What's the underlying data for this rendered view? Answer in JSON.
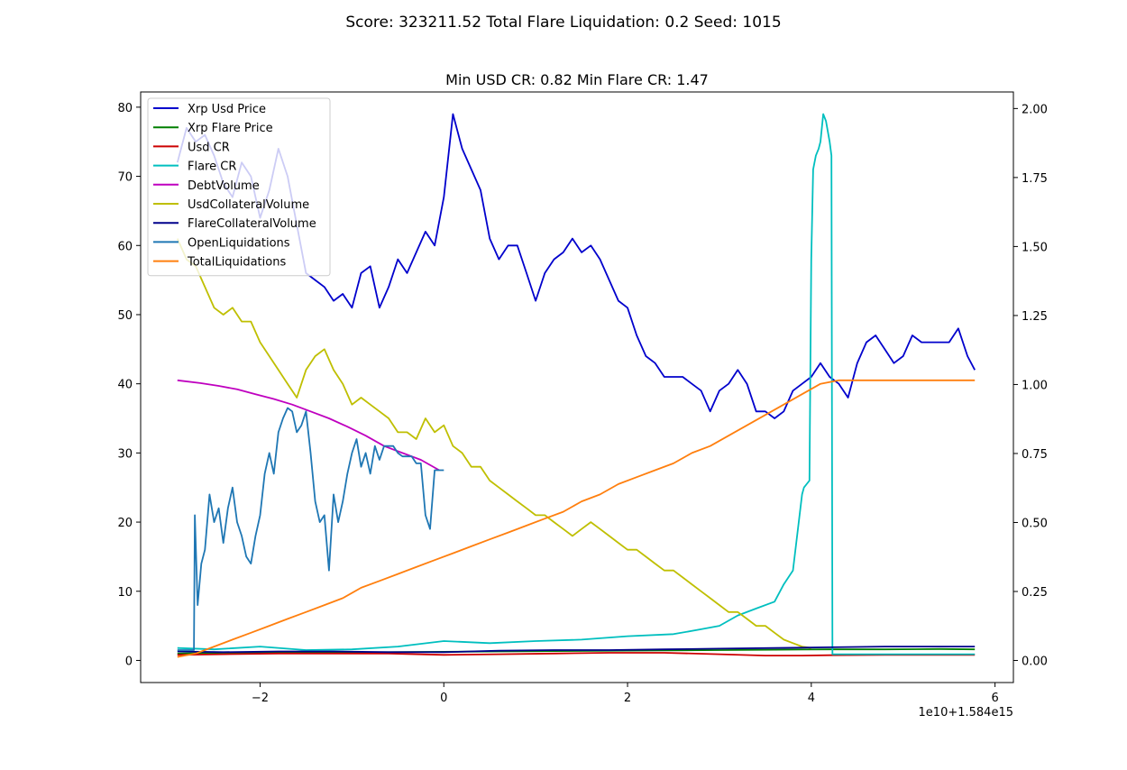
{
  "suptitle": "Score: 323211.52 Total Flare Liquidation: 0.2 Seed: 1015",
  "chart_data": {
    "type": "line",
    "title": "Min USD CR: 0.82 Min Flare CR: 1.47",
    "x_offset_label": "1e10+1.584e15",
    "xlim": [
      -3.3,
      6.2
    ],
    "ylim_left": [
      -3.2,
      82.2
    ],
    "ylim_right": [
      -0.08,
      2.06
    ],
    "x_ticks": [
      -2,
      0,
      2,
      4,
      6
    ],
    "x_tick_labels": [
      "−2",
      "0",
      "2",
      "4",
      "6"
    ],
    "y_left_ticks": [
      0,
      10,
      20,
      30,
      40,
      50,
      60,
      70,
      80
    ],
    "y_left_tick_labels": [
      "0",
      "10",
      "20",
      "30",
      "40",
      "50",
      "60",
      "70",
      "80"
    ],
    "y_right_ticks": [
      0,
      0.25,
      0.5,
      0.75,
      1.0,
      1.25,
      1.5,
      1.75,
      2.0
    ],
    "y_right_tick_labels": [
      "0.00",
      "0.25",
      "0.50",
      "0.75",
      "1.00",
      "1.25",
      "1.50",
      "1.75",
      "2.00"
    ],
    "legend_position": "upper-left",
    "series": [
      {
        "name": "Xrp Usd Price",
        "color": "#0000cc",
        "axis": "left",
        "x": [
          -2.9,
          -2.8,
          -2.7,
          -2.6,
          -2.5,
          -2.4,
          -2.3,
          -2.2,
          -2.1,
          -2.0,
          -1.9,
          -1.8,
          -1.7,
          -1.6,
          -1.5,
          -1.4,
          -1.3,
          -1.2,
          -1.1,
          -1.0,
          -0.9,
          -0.8,
          -0.7,
          -0.6,
          -0.5,
          -0.4,
          -0.3,
          -0.2,
          -0.1,
          0.0,
          0.1,
          0.2,
          0.3,
          0.4,
          0.5,
          0.6,
          0.7,
          0.8,
          0.9,
          1.0,
          1.1,
          1.2,
          1.3,
          1.4,
          1.5,
          1.6,
          1.7,
          1.8,
          1.9,
          2.0,
          2.1,
          2.2,
          2.3,
          2.4,
          2.5,
          2.6,
          2.7,
          2.8,
          2.9,
          3.0,
          3.1,
          3.2,
          3.3,
          3.4,
          3.5,
          3.6,
          3.7,
          3.8,
          3.9,
          4.0,
          4.1,
          4.2,
          4.3,
          4.4,
          4.5,
          4.6,
          4.7,
          4.8,
          4.9,
          5.0,
          5.1,
          5.2,
          5.3,
          5.4,
          5.5,
          5.6,
          5.7,
          5.78
        ],
        "y": [
          72,
          77,
          75,
          76,
          73,
          69,
          67,
          72,
          70,
          64,
          68,
          74,
          70,
          63,
          56,
          55,
          54,
          52,
          53,
          51,
          56,
          57,
          51,
          54,
          58,
          56,
          59,
          62,
          60,
          67,
          79,
          74,
          71,
          68,
          61,
          58,
          60,
          60,
          56,
          52,
          56,
          58,
          59,
          61,
          59,
          60,
          58,
          55,
          52,
          51,
          47,
          44,
          43,
          41,
          41,
          41,
          40,
          39,
          36,
          39,
          40,
          42,
          40,
          36,
          36,
          35,
          36,
          39,
          40,
          41,
          43,
          41,
          40,
          38,
          43,
          46,
          47,
          45,
          43,
          44,
          47,
          46,
          46,
          46,
          46,
          48,
          44,
          42
        ]
      },
      {
        "name": "Xrp Flare Price",
        "color": "#007f00",
        "axis": "left",
        "x": [
          -2.9,
          -2.4,
          -1.8,
          -1.2,
          -0.6,
          0.0,
          0.6,
          1.2,
          1.8,
          2.4,
          3.0,
          3.6,
          4.2,
          4.8,
          5.4,
          5.78
        ],
        "y": [
          1.0,
          1.1,
          1.2,
          1.15,
          1.2,
          1.25,
          1.3,
          1.35,
          1.4,
          1.45,
          1.5,
          1.55,
          1.6,
          1.6,
          1.65,
          1.6
        ]
      },
      {
        "name": "Usd CR",
        "color": "#cc0000",
        "axis": "left",
        "x": [
          -2.9,
          -2.4,
          -1.8,
          -1.2,
          -0.6,
          0.0,
          0.6,
          1.2,
          1.8,
          2.4,
          3.0,
          3.5,
          3.9,
          4.2,
          4.8,
          5.4,
          5.78
        ],
        "y": [
          0.8,
          0.9,
          1.0,
          1.0,
          1.0,
          0.8,
          0.9,
          1.0,
          1.1,
          1.1,
          0.9,
          0.7,
          0.7,
          0.75,
          0.8,
          0.8,
          0.8
        ]
      },
      {
        "name": "Flare CR",
        "color": "#00bfbf",
        "axis": "left",
        "x": [
          -2.9,
          -2.5,
          -2.0,
          -1.5,
          -1.0,
          -0.5,
          0.0,
          0.5,
          1.0,
          1.5,
          2.0,
          2.5,
          2.8,
          3.0,
          3.2,
          3.4,
          3.6,
          3.7,
          3.8,
          3.9,
          3.92,
          3.98,
          4.0,
          4.02,
          4.05,
          4.08,
          4.1,
          4.13,
          4.16,
          4.2,
          4.22,
          4.23,
          4.24,
          4.5,
          5.0,
          5.5,
          5.78
        ],
        "y": [
          1.8,
          1.6,
          2.0,
          1.5,
          1.6,
          2.0,
          2.8,
          2.5,
          2.8,
          3.0,
          3.5,
          3.8,
          4.5,
          5.0,
          6.5,
          7.5,
          8.5,
          11,
          13,
          24,
          25,
          26,
          58,
          71,
          73,
          74,
          75,
          79,
          78,
          75,
          73,
          0.9,
          0.9,
          0.9,
          0.9,
          0.9,
          0.9
        ]
      },
      {
        "name": "DebtVolume",
        "color": "#bf00bf",
        "axis": "left",
        "x": [
          -2.9,
          -2.65,
          -2.45,
          -2.25,
          -2.05,
          -1.85,
          -1.65,
          -1.45,
          -1.25,
          -1.05,
          -0.85,
          -0.65,
          -0.45,
          -0.25,
          -0.05
        ],
        "y": [
          40.5,
          40.1,
          39.7,
          39.2,
          38.5,
          37.8,
          37.0,
          36.0,
          35.0,
          33.8,
          32.5,
          31.0,
          30.0,
          29.0,
          27.5
        ]
      },
      {
        "name": "UsdCollateralVolume",
        "color": "#bfbf00",
        "axis": "left",
        "x": [
          -2.9,
          -2.8,
          -2.7,
          -2.6,
          -2.5,
          -2.4,
          -2.3,
          -2.2,
          -2.1,
          -2.0,
          -1.9,
          -1.8,
          -1.7,
          -1.6,
          -1.5,
          -1.4,
          -1.3,
          -1.2,
          -1.1,
          -1.0,
          -0.9,
          -0.8,
          -0.7,
          -0.6,
          -0.5,
          -0.4,
          -0.3,
          -0.2,
          -0.1,
          0.0,
          0.1,
          0.2,
          0.3,
          0.4,
          0.5,
          0.6,
          0.7,
          0.8,
          0.9,
          1.0,
          1.1,
          1.2,
          1.3,
          1.4,
          1.5,
          1.6,
          1.7,
          1.8,
          1.9,
          2.0,
          2.1,
          2.2,
          2.3,
          2.4,
          2.5,
          2.6,
          2.7,
          2.8,
          2.9,
          3.0,
          3.1,
          3.2,
          3.3,
          3.4,
          3.5,
          3.6,
          3.7,
          3.8,
          3.9,
          4.0
        ],
        "y": [
          61,
          58,
          57,
          54,
          51,
          50,
          51,
          49,
          49,
          46,
          44,
          42,
          40,
          38,
          42,
          44,
          45,
          42,
          40,
          37,
          38,
          37,
          36,
          35,
          33,
          33,
          32,
          35,
          33,
          34,
          31,
          30,
          28,
          28,
          26,
          25,
          24,
          23,
          22,
          21,
          21,
          20,
          19,
          18,
          19,
          20,
          19,
          18,
          17,
          16,
          16,
          15,
          14,
          13,
          13,
          12,
          11,
          10,
          9,
          8,
          7,
          7,
          6,
          5,
          5,
          4,
          3,
          2.5,
          2.0,
          1.8
        ]
      },
      {
        "name": "FlareCollateralVolume",
        "color": "#00008b",
        "axis": "left",
        "x": [
          -2.9,
          -2.4,
          -1.8,
          -1.2,
          -0.6,
          0.0,
          0.6,
          1.2,
          1.8,
          2.4,
          3.0,
          3.6,
          4.2,
          4.8,
          5.4,
          5.78
        ],
        "y": [
          1.3,
          1.2,
          1.3,
          1.3,
          1.2,
          1.2,
          1.4,
          1.5,
          1.5,
          1.6,
          1.7,
          1.8,
          1.9,
          2.0,
          2.0,
          2.0
        ]
      },
      {
        "name": "OpenLiquidations",
        "color": "#1f77b4",
        "axis": "left",
        "x": [
          -2.9,
          -2.75,
          -2.72,
          -2.71,
          -2.68,
          -2.64,
          -2.6,
          -2.55,
          -2.5,
          -2.45,
          -2.4,
          -2.35,
          -2.3,
          -2.25,
          -2.2,
          -2.15,
          -2.1,
          -2.05,
          -2.0,
          -1.95,
          -1.9,
          -1.85,
          -1.8,
          -1.75,
          -1.7,
          -1.65,
          -1.6,
          -1.55,
          -1.5,
          -1.45,
          -1.4,
          -1.35,
          -1.3,
          -1.25,
          -1.2,
          -1.15,
          -1.1,
          -1.05,
          -1.0,
          -0.95,
          -0.9,
          -0.85,
          -0.8,
          -0.75,
          -0.7,
          -0.65,
          -0.6,
          -0.55,
          -0.5,
          -0.45,
          -0.4,
          -0.35,
          -0.3,
          -0.25,
          -0.2,
          -0.15,
          -0.1,
          -0.05,
          0.0
        ],
        "y": [
          1.5,
          1.5,
          1.5,
          21,
          8,
          14,
          16,
          24,
          20,
          22,
          17,
          22,
          25,
          20,
          18,
          15,
          14,
          18,
          21,
          27,
          30,
          27,
          33,
          35,
          36.5,
          36,
          33,
          34,
          36,
          30,
          23,
          20,
          21,
          13,
          24,
          20,
          23,
          27,
          30,
          32,
          28,
          30,
          27,
          31,
          29,
          31,
          31,
          31,
          30,
          29.5,
          29.5,
          29.5,
          28.5,
          28.5,
          21,
          19,
          27.5,
          27.5,
          27.5
        ]
      },
      {
        "name": "TotalLiquidations",
        "color": "#ff7f0e",
        "axis": "left",
        "x": [
          -2.9,
          -2.7,
          -2.5,
          -2.3,
          -2.1,
          -1.9,
          -1.7,
          -1.5,
          -1.3,
          -1.1,
          -0.9,
          -0.7,
          -0.5,
          -0.3,
          -0.1,
          0.1,
          0.3,
          0.5,
          0.7,
          0.9,
          1.1,
          1.3,
          1.5,
          1.7,
          1.9,
          2.1,
          2.3,
          2.5,
          2.7,
          2.9,
          3.1,
          3.3,
          3.5,
          3.7,
          3.9,
          4.1,
          4.3,
          4.5,
          5.0,
          5.78
        ],
        "y": [
          0.5,
          1.0,
          2.0,
          3.0,
          4.0,
          5.0,
          6.0,
          7.0,
          8.0,
          9.0,
          10.5,
          11.5,
          12.5,
          13.5,
          14.5,
          15.5,
          16.5,
          17.5,
          18.5,
          19.5,
          20.5,
          21.5,
          23.0,
          24.0,
          25.5,
          26.5,
          27.5,
          28.5,
          30.0,
          31.0,
          32.5,
          34.0,
          35.5,
          37.0,
          38.5,
          40.0,
          40.5,
          40.5,
          40.5,
          40.5
        ]
      }
    ]
  }
}
